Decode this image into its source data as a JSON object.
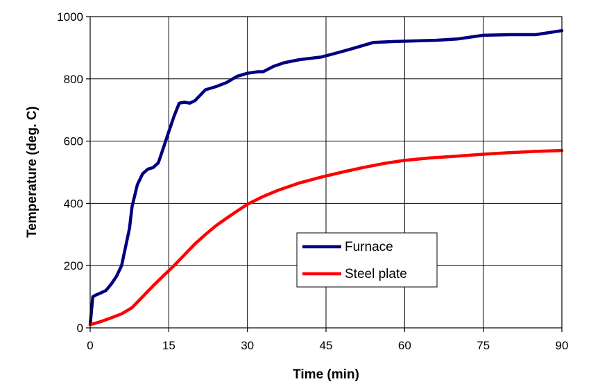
{
  "chart_data": {
    "type": "line",
    "title": "",
    "xlabel": "Time (min)",
    "ylabel": "Temperature (deg. C)",
    "xlim": [
      0,
      90
    ],
    "ylim": [
      0,
      1000
    ],
    "xticks": [
      "0",
      "15",
      "30",
      "45",
      "60",
      "75",
      "90"
    ],
    "xtick_values": [
      0,
      15,
      30,
      45,
      60,
      75,
      90
    ],
    "yticks": [
      "0",
      "200",
      "400",
      "600",
      "800",
      "1000"
    ],
    "ytick_values": [
      0,
      200,
      400,
      600,
      800,
      1000
    ],
    "grid": true,
    "legend": "center-right",
    "series": [
      {
        "name": "Furnace",
        "color": "#000080",
        "x": [
          0,
          0.5,
          1,
          2,
          3,
          4,
          5,
          6,
          7,
          7.5,
          8,
          9,
          10,
          11,
          12,
          13,
          14,
          15,
          16,
          17,
          18,
          19,
          20,
          22,
          24,
          26,
          28,
          30,
          32,
          33,
          35,
          37,
          40,
          44,
          47,
          50,
          54,
          58,
          62,
          66,
          70,
          75,
          80,
          85,
          90
        ],
        "values": [
          10,
          100,
          105,
          112,
          120,
          140,
          165,
          200,
          280,
          320,
          390,
          460,
          495,
          510,
          515,
          530,
          580,
          630,
          680,
          722,
          725,
          722,
          730,
          765,
          775,
          788,
          808,
          818,
          823,
          823,
          840,
          852,
          862,
          870,
          883,
          897,
          917,
          920,
          922,
          924,
          928,
          940,
          942,
          942,
          955
        ]
      },
      {
        "name": "Steel plate",
        "color": "#ff0000",
        "x": [
          0,
          2,
          4,
          6,
          8,
          10,
          12,
          14,
          16,
          18,
          20,
          22,
          24,
          26,
          28,
          30,
          33,
          36,
          40,
          44,
          48,
          52,
          56,
          60,
          65,
          70,
          75,
          80,
          85,
          90
        ],
        "values": [
          10,
          20,
          32,
          45,
          65,
          100,
          135,
          168,
          200,
          235,
          270,
          300,
          328,
          352,
          375,
          397,
          422,
          443,
          466,
          484,
          500,
          515,
          528,
          538,
          546,
          552,
          558,
          563,
          567,
          570
        ]
      }
    ]
  }
}
